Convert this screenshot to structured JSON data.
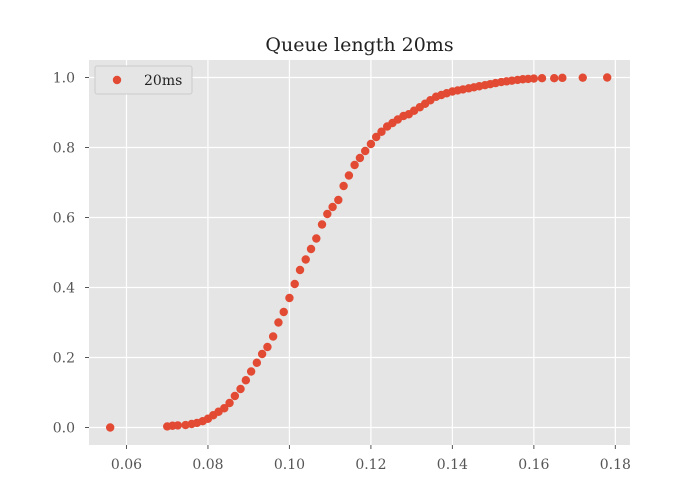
{
  "chart_data": {
    "type": "scatter",
    "title": "Queue length 20ms",
    "xlabel": "",
    "ylabel": "",
    "xlim": [
      0.0508,
      0.1836
    ],
    "ylim": [
      -0.05,
      1.05
    ],
    "xticks": [
      0.06,
      0.08,
      0.1,
      0.12,
      0.14,
      0.16,
      0.18
    ],
    "xtick_labels": [
      "0.06",
      "0.08",
      "0.10",
      "0.12",
      "0.14",
      "0.16",
      "0.18"
    ],
    "yticks": [
      0.0,
      0.2,
      0.4,
      0.6,
      0.8,
      1.0
    ],
    "ytick_labels": [
      "0.0",
      "0.2",
      "0.4",
      "0.6",
      "0.8",
      "1.0"
    ],
    "grid": true,
    "legend": {
      "position": "upper-left",
      "entries": [
        "20ms"
      ]
    },
    "series": [
      {
        "name": "20ms",
        "color": "#E24A33",
        "marker": "circle",
        "points": [
          [
            0.056,
            0.0
          ],
          [
            0.07,
            0.003
          ],
          [
            0.0713,
            0.005
          ],
          [
            0.0726,
            0.006
          ],
          [
            0.0745,
            0.007
          ],
          [
            0.076,
            0.01
          ],
          [
            0.0773,
            0.013
          ],
          [
            0.0787,
            0.018
          ],
          [
            0.08,
            0.025
          ],
          [
            0.0813,
            0.035
          ],
          [
            0.0826,
            0.045
          ],
          [
            0.084,
            0.055
          ],
          [
            0.0853,
            0.07
          ],
          [
            0.0866,
            0.09
          ],
          [
            0.088,
            0.11
          ],
          [
            0.0893,
            0.135
          ],
          [
            0.0906,
            0.16
          ],
          [
            0.092,
            0.185
          ],
          [
            0.0933,
            0.21
          ],
          [
            0.0946,
            0.23
          ],
          [
            0.096,
            0.26
          ],
          [
            0.0973,
            0.3
          ],
          [
            0.0986,
            0.33
          ],
          [
            0.1,
            0.37
          ],
          [
            0.1013,
            0.41
          ],
          [
            0.1026,
            0.45
          ],
          [
            0.104,
            0.48
          ],
          [
            0.1053,
            0.51
          ],
          [
            0.1066,
            0.54
          ],
          [
            0.108,
            0.58
          ],
          [
            0.1093,
            0.61
          ],
          [
            0.1106,
            0.63
          ],
          [
            0.112,
            0.65
          ],
          [
            0.1133,
            0.69
          ],
          [
            0.1146,
            0.72
          ],
          [
            0.116,
            0.75
          ],
          [
            0.1173,
            0.77
          ],
          [
            0.1186,
            0.79
          ],
          [
            0.12,
            0.81
          ],
          [
            0.1213,
            0.83
          ],
          [
            0.1226,
            0.845
          ],
          [
            0.124,
            0.86
          ],
          [
            0.1253,
            0.87
          ],
          [
            0.1266,
            0.88
          ],
          [
            0.128,
            0.89
          ],
          [
            0.1293,
            0.895
          ],
          [
            0.1306,
            0.905
          ],
          [
            0.132,
            0.915
          ],
          [
            0.1333,
            0.925
          ],
          [
            0.1346,
            0.935
          ],
          [
            0.136,
            0.945
          ],
          [
            0.1373,
            0.95
          ],
          [
            0.1386,
            0.955
          ],
          [
            0.14,
            0.96
          ],
          [
            0.1413,
            0.963
          ],
          [
            0.1426,
            0.966
          ],
          [
            0.144,
            0.969
          ],
          [
            0.1453,
            0.972
          ],
          [
            0.1466,
            0.975
          ],
          [
            0.148,
            0.978
          ],
          [
            0.1493,
            0.981
          ],
          [
            0.1506,
            0.984
          ],
          [
            0.152,
            0.987
          ],
          [
            0.1533,
            0.989
          ],
          [
            0.1546,
            0.991
          ],
          [
            0.156,
            0.993
          ],
          [
            0.1573,
            0.995
          ],
          [
            0.1586,
            0.996
          ],
          [
            0.16,
            0.997
          ],
          [
            0.162,
            0.998
          ],
          [
            0.165,
            0.998
          ],
          [
            0.167,
            0.999
          ],
          [
            0.172,
            0.9995
          ],
          [
            0.178,
            1.0
          ]
        ]
      }
    ]
  }
}
